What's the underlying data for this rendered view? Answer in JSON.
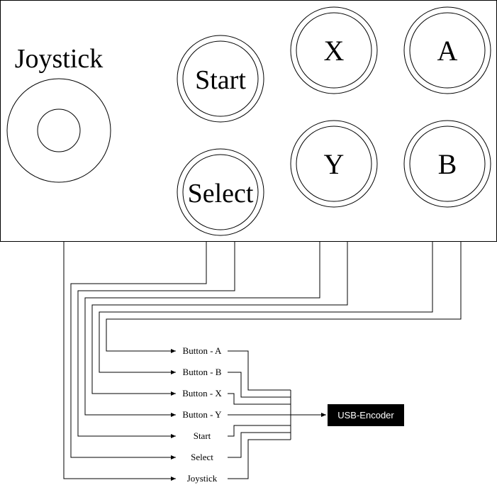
{
  "panel": {
    "joystick_label": "Joystick",
    "buttons": {
      "start": "Start",
      "select": "Select",
      "x": "X",
      "y": "Y",
      "a": "A",
      "b": "B"
    }
  },
  "wiring": {
    "inputs": [
      "Button - A",
      "Button - B",
      "Button - X",
      "Button - Y",
      "Start",
      "Select",
      "Joystick"
    ],
    "encoder": "USB-Encoder"
  },
  "colors": {
    "line": "#000000",
    "encoder_bg": "#000000",
    "encoder_text": "#ffffff"
  }
}
